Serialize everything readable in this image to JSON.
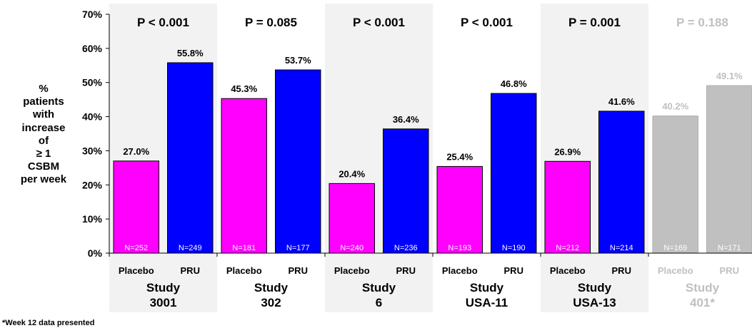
{
  "chart_data": {
    "type": "bar",
    "ylabel_lines": [
      "%",
      "patients",
      "with",
      "increase",
      "of",
      "≥ 1",
      "CSBM",
      "per week"
    ],
    "ylim": [
      0,
      70
    ],
    "yticks": [
      "0%",
      "10%",
      "20%",
      "30%",
      "40%",
      "50%",
      "60%",
      "70%"
    ],
    "ytick_values": [
      0,
      10,
      20,
      30,
      40,
      50,
      60,
      70
    ],
    "bar_labels": [
      "Placebo",
      "PRU"
    ],
    "series_colors": {
      "Placebo": "#ff00ff",
      "PRU": "#0000ff",
      "dimmed": "#c0c0c0"
    },
    "groups": [
      {
        "name_lines": [
          "Study",
          "3001"
        ],
        "pvalue": "P < 0.001",
        "shaded": true,
        "dimmed": false,
        "values": [
          27.0,
          55.8
        ],
        "value_labels": [
          "27.0%",
          "55.8%"
        ],
        "n_labels": [
          "N=252",
          "N=249"
        ]
      },
      {
        "name_lines": [
          "Study",
          "302"
        ],
        "pvalue": "P = 0.085",
        "shaded": false,
        "dimmed": false,
        "values": [
          45.3,
          53.7
        ],
        "value_labels": [
          "45.3%",
          "53.7%"
        ],
        "n_labels": [
          "N=181",
          "N=177"
        ]
      },
      {
        "name_lines": [
          "Study",
          "6"
        ],
        "pvalue": "P < 0.001",
        "shaded": true,
        "dimmed": false,
        "values": [
          20.4,
          36.4
        ],
        "value_labels": [
          "20.4%",
          "36.4%"
        ],
        "n_labels": [
          "N=240",
          "N=236"
        ]
      },
      {
        "name_lines": [
          "Study",
          "USA-11"
        ],
        "pvalue": "P < 0.001",
        "shaded": false,
        "dimmed": false,
        "values": [
          25.4,
          46.8
        ],
        "value_labels": [
          "25.4%",
          "46.8%"
        ],
        "n_labels": [
          "N=193",
          "N=190"
        ]
      },
      {
        "name_lines": [
          "Study",
          "USA-13"
        ],
        "pvalue": "P = 0.001",
        "shaded": true,
        "dimmed": false,
        "values": [
          26.9,
          41.6
        ],
        "value_labels": [
          "26.9%",
          "41.6%"
        ],
        "n_labels": [
          "N=212",
          "N=214"
        ]
      },
      {
        "name_lines": [
          "Study",
          "401*"
        ],
        "pvalue": "P = 0.188",
        "shaded": false,
        "dimmed": true,
        "values": [
          40.2,
          49.1
        ],
        "value_labels": [
          "40.2%",
          "49.1%"
        ],
        "n_labels": [
          "N=169",
          "N=171"
        ]
      }
    ]
  },
  "footnote": "*Week 12 data presented"
}
